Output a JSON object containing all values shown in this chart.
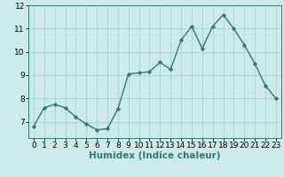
{
  "x": [
    0,
    1,
    2,
    3,
    4,
    5,
    6,
    7,
    8,
    9,
    10,
    11,
    12,
    13,
    14,
    15,
    16,
    17,
    18,
    19,
    20,
    21,
    22,
    23
  ],
  "y": [
    6.8,
    7.6,
    7.75,
    7.6,
    7.2,
    6.9,
    6.65,
    6.7,
    7.55,
    9.05,
    9.1,
    9.15,
    9.55,
    9.25,
    10.5,
    11.1,
    10.15,
    11.1,
    11.6,
    11.0,
    10.3,
    9.5,
    8.55,
    8.0
  ],
  "line_color": "#2e7d6e",
  "marker": "D",
  "marker_size": 2.2,
  "linewidth": 1.0,
  "background_color": "#cceae8",
  "grid_color": "#aad4d0",
  "xlabel": "Humidex (Indice chaleur)",
  "xlabel_fontsize": 7.5,
  "tick_fontsize": 6.5,
  "xlim": [
    -0.5,
    23.5
  ],
  "ylim": [
    6.3,
    12.0
  ],
  "yticks": [
    7,
    8,
    9,
    10,
    11,
    12
  ],
  "xticks": [
    0,
    1,
    2,
    3,
    4,
    5,
    6,
    7,
    8,
    9,
    10,
    11,
    12,
    13,
    14,
    15,
    16,
    17,
    18,
    19,
    20,
    21,
    22,
    23
  ]
}
